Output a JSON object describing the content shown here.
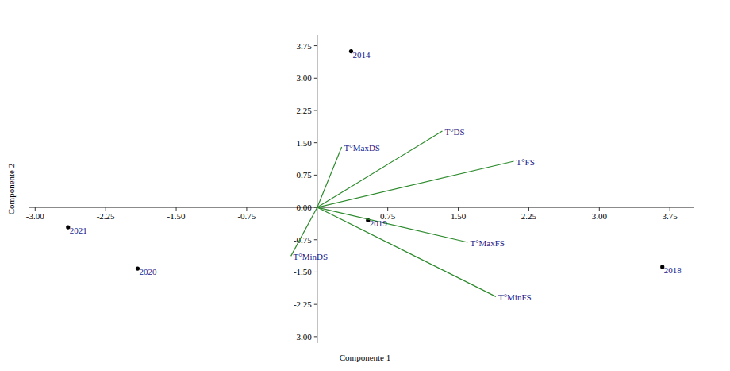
{
  "chart_data": {
    "type": "biplot",
    "x_label": "Componente 1",
    "y_label": "Componente 2",
    "xlim": [
      -3.07,
      4.01
    ],
    "ylim": [
      -3.15,
      4.0
    ],
    "xticks": [
      {
        "value": -3,
        "label": "-3.00"
      },
      -2.25,
      {
        "value": -1.5,
        "label": "-1.50"
      },
      -0.75,
      0.75,
      {
        "value": 1.5,
        "label": "1.50"
      },
      2.25,
      {
        "value": 3,
        "label": "3.00"
      },
      3.75
    ],
    "yticks": [
      {
        "value": -3,
        "label": "-3.00"
      },
      -2.25,
      {
        "value": -1.5,
        "label": "-1.50"
      },
      -0.75,
      {
        "value": 0,
        "label": "0.00"
      },
      0.75,
      {
        "value": 1.5,
        "label": "1.50"
      },
      2.25,
      {
        "value": 3,
        "label": "3.00"
      },
      3.75
    ],
    "grid": false,
    "series": [
      {
        "type": "scatter",
        "marker": "circle",
        "color": "#000000",
        "labels": [
          "2014",
          "2021",
          "2020",
          "2019",
          "2018"
        ],
        "x": [
          0.36,
          -2.65,
          -1.91,
          0.54,
          3.67
        ],
        "values": [
          3.62,
          -0.46,
          -1.42,
          -0.3,
          -1.38
        ]
      },
      {
        "type": "vector",
        "color": "#2e8b2e",
        "labels": [
          "T°MaxDS",
          "T°DS",
          "T°FS",
          "T°MaxFS",
          "T°MinFS",
          "T°MinDS"
        ],
        "x": [
          0.26,
          1.33,
          2.09,
          1.6,
          1.9,
          -0.28
        ],
        "values": [
          1.4,
          1.77,
          1.07,
          -0.81,
          -2.07,
          -1.13
        ]
      }
    ]
  }
}
